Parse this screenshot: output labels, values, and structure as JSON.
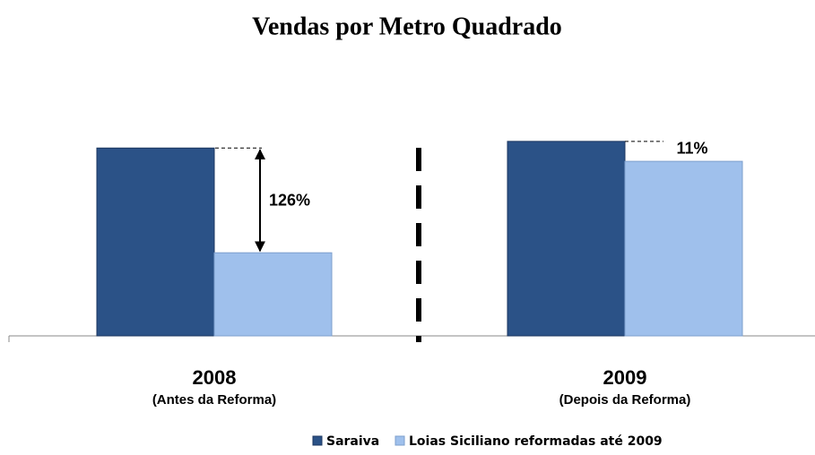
{
  "chart_data": {
    "type": "bar",
    "title": "Vendas por Metro Quadrado",
    "categories": [
      "2008",
      "2009"
    ],
    "category_subtitles": [
      "(Antes da Reforma)",
      "(Depois da Reforma)"
    ],
    "series": [
      {
        "name": "Saraiva",
        "color": "#2b5287",
        "values": [
          226,
          234
        ]
      },
      {
        "name": "Loias Siciliano reformadas até 2009",
        "color": "#9fc0ec",
        "values": [
          100,
          210
        ]
      }
    ],
    "annotations": [
      "126%",
      "11%"
    ],
    "ylim": [
      0,
      250
    ],
    "legend": "bottom"
  }
}
